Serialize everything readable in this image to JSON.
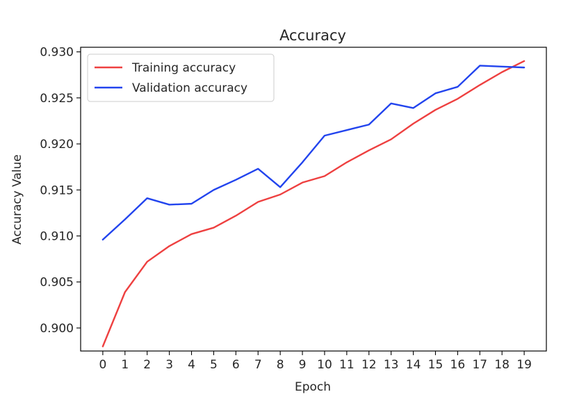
{
  "chart_data": {
    "type": "line",
    "title": "Accuracy",
    "xlabel": "Epoch",
    "ylabel": "Accuracy Value",
    "x": [
      0,
      1,
      2,
      3,
      4,
      5,
      6,
      7,
      8,
      9,
      10,
      11,
      12,
      13,
      14,
      15,
      16,
      17,
      18,
      19
    ],
    "x_tick_labels": [
      "0",
      "1",
      "2",
      "3",
      "4",
      "5",
      "6",
      "7",
      "8",
      "9",
      "10",
      "11",
      "12",
      "13",
      "14",
      "15",
      "16",
      "17",
      "18",
      "19"
    ],
    "y_tick_values": [
      0.9,
      0.905,
      0.91,
      0.915,
      0.92,
      0.925,
      0.93
    ],
    "y_tick_labels": [
      "0.900",
      "0.905",
      "0.910",
      "0.915",
      "0.920",
      "0.925",
      "0.930"
    ],
    "xlim": [
      -1,
      20
    ],
    "ylim": [
      0.8975,
      0.9305
    ],
    "grid": false,
    "legend_position": "top-left",
    "series": [
      {
        "name": "Training accuracy",
        "color": "#ee4040",
        "values": [
          0.898,
          0.9039,
          0.9072,
          0.9089,
          0.9102,
          0.9109,
          0.9122,
          0.9137,
          0.9145,
          0.9158,
          0.9165,
          0.918,
          0.9193,
          0.9205,
          0.9222,
          0.9237,
          0.9249,
          0.9264,
          0.9278,
          0.929
        ]
      },
      {
        "name": "Validation accuracy",
        "color": "#2244ee",
        "values": [
          0.9096,
          0.9118,
          0.9141,
          0.9134,
          0.9135,
          0.915,
          0.9161,
          0.9173,
          0.9153,
          0.918,
          0.9209,
          0.9215,
          0.9221,
          0.9244,
          0.9239,
          0.9255,
          0.9262,
          0.9285,
          0.9284,
          0.9283
        ]
      }
    ]
  }
}
